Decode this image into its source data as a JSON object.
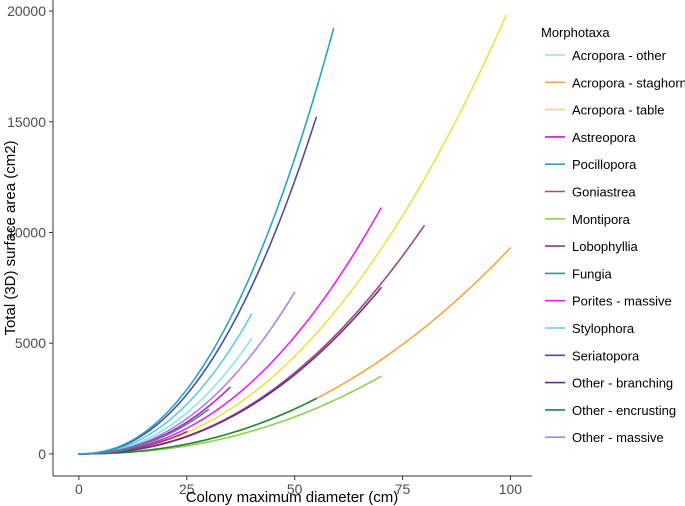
{
  "chart_data": {
    "type": "line",
    "title": "",
    "xlabel": "Colony maximum diameter (cm)",
    "ylabel": "Total (3D) surface area (cm2)",
    "xlim": [
      -6,
      105
    ],
    "ylim": [
      -1000,
      20500
    ],
    "xticks": [
      0,
      25,
      50,
      75,
      100
    ],
    "yticks": [
      0,
      5000,
      10000,
      15000,
      20000
    ],
    "grid": false,
    "legend": {
      "title": "Morphotaxa",
      "position": "right"
    },
    "series": [
      {
        "name": "Acropora - other",
        "color": "#8ee3ee",
        "xmax": 40,
        "ymax": 5200
      },
      {
        "name": "Acropora - staghorn",
        "color": "#f5a742",
        "xmax": 100,
        "ymax": 9300
      },
      {
        "name": "Acropora - table",
        "color": "#ebe24a",
        "xmax": 99,
        "ymax": 19800
      },
      {
        "name": "Astreopora",
        "color": "#bb1fce",
        "xmax": 35,
        "ymax": 3000
      },
      {
        "name": "Pocillopora",
        "color": "#2aa3c9",
        "xmax": 59,
        "ymax": 19200
      },
      {
        "name": "Goniastrea",
        "color": "#a34a78",
        "xmax": 80,
        "ymax": 10300
      },
      {
        "name": "Montipora",
        "color": "#8fd14f",
        "xmax": 70,
        "ymax": 3500
      },
      {
        "name": "Lobophyllia",
        "color": "#9a3c66",
        "xmax": 25,
        "ymax": 1000
      },
      {
        "name": "Fungia",
        "color": "#3f8f9a",
        "xmax": 30,
        "ymax": 2000
      },
      {
        "name": "Porites - massive",
        "color": "#ec22ec",
        "xmax": 70,
        "ymax": 11100
      },
      {
        "name": "Stylophora",
        "color": "#60cde0",
        "xmax": 40,
        "ymax": 6300
      },
      {
        "name": "Seriatopora",
        "color": "#4a4f9c",
        "xmax": 55,
        "ymax": 15200
      },
      {
        "name": "Other - branching",
        "color": "#6a2c8e",
        "xmax": 70,
        "ymax": 7500
      },
      {
        "name": "Other - encrusting",
        "color": "#1e8a3c",
        "xmax": 55,
        "ymax": 2500
      },
      {
        "name": "Other - massive",
        "color": "#b382e8",
        "xmax": 50,
        "ymax": 7300
      }
    ]
  }
}
